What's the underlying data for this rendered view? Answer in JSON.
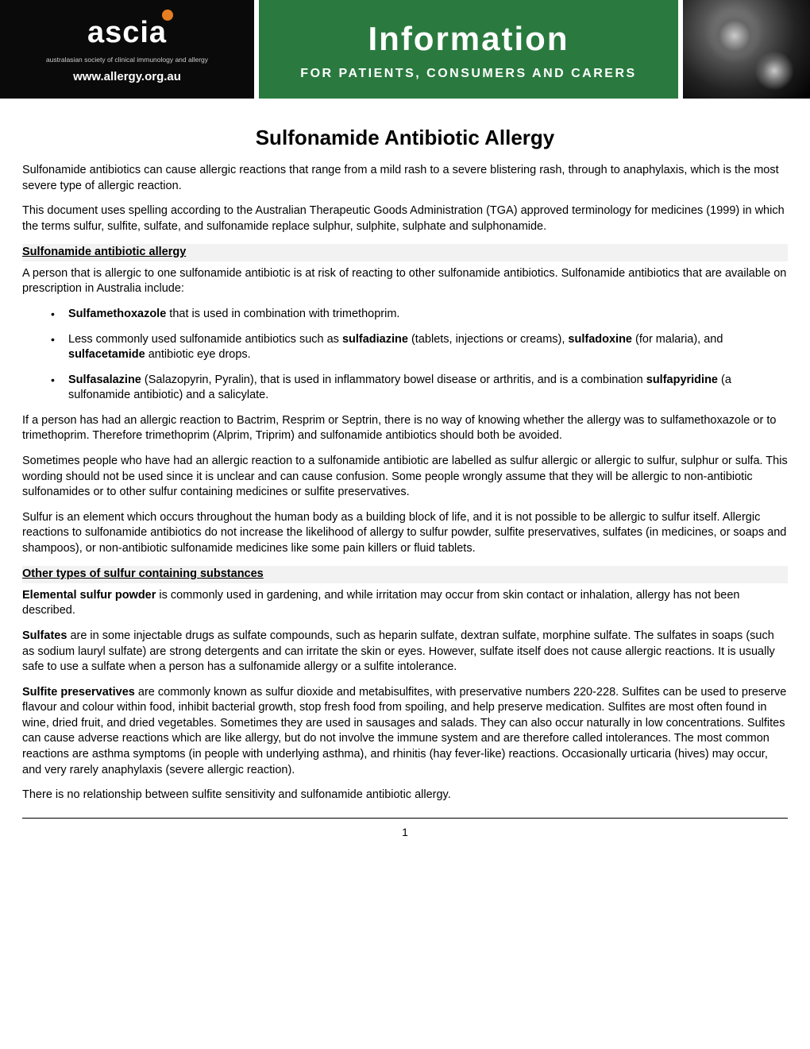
{
  "banner": {
    "logo_text": "ascia",
    "logo_subtitle": "australasian society of clinical immunology and allergy",
    "logo_url": "www.allergy.org.au",
    "info_title": "Information",
    "info_subtitle": "FOR PATIENTS, CONSUMERS AND CARERS",
    "colors": {
      "banner_bg": "#000000",
      "mid_bg": "#2a7a3f",
      "logo_dot": "#e67e22",
      "text_white": "#ffffff"
    }
  },
  "doc": {
    "title": "Sulfonamide Antibiotic Allergy",
    "intro1": "Sulfonamide antibiotics can cause allergic reactions that range from a mild rash to a severe blistering rash, through to anaphylaxis, which is the most severe type of allergic reaction.",
    "intro2": "This document uses spelling according to the Australian Therapeutic Goods Administration (TGA) approved terminology for medicines (1999) in which the terms sulfur, sulfite, sulfate, and sulfonamide replace sulphur, sulphite, sulphate and sulphonamide.",
    "section1_head": "Sulfonamide antibiotic allergy",
    "section1_p1": "A person that is allergic to one sulfonamide antibiotic is at risk of reacting to other sulfonamide antibiotics. Sulfonamide antibiotics that are available on prescription in Australia include:",
    "bullets": {
      "b1_bold": "Sulfamethoxazole",
      "b1_rest": " that is used in combination with trimethoprim.",
      "b2_pre": "Less commonly used sulfonamide antibiotics such as ",
      "b2_bold1": "sulfadiazine",
      "b2_mid1": " (tablets, injections or creams), ",
      "b2_bold2": "sulfadoxine",
      "b2_mid2": " (for malaria), and ",
      "b2_bold3": "sulfacetamide",
      "b2_end": " antibiotic eye drops.",
      "b3_bold1": "Sulfasalazine",
      "b3_mid1": " (Salazopyrin, Pyralin), that is used in inflammatory bowel disease or arthritis, and is a combination ",
      "b3_bold2": "sulfapyridine",
      "b3_end": " (a sulfonamide antibiotic) and a salicylate."
    },
    "section1_p2": "If a person has had an allergic reaction to Bactrim, Resprim or Septrin, there is no way of knowing whether the allergy was to sulfamethoxazole or to trimethoprim. Therefore trimethoprim (Alprim, Triprim) and sulfonamide antibiotics should both be avoided.",
    "section1_p3": "Sometimes people who have had an allergic reaction to a sulfonamide antibiotic are labelled as sulfur allergic or allergic to sulfur, sulphur or sulfa. This wording should not be used since it is unclear and can cause confusion. Some people wrongly assume that they will be allergic to non-antibiotic sulfonamides or to other sulfur containing medicines or sulfite preservatives.",
    "section1_p4": "Sulfur is an element which occurs throughout the human body as a building block of life, and it is not possible to be allergic to sulfur itself. Allergic reactions to sulfonamide antibiotics do not increase the likelihood of allergy to sulfur powder, sulfite preservatives, sulfates (in medicines, or soaps and shampoos), or non-antibiotic sulfonamide medicines like some pain killers or fluid tablets.",
    "section2_head": "Other types of sulfur containing substances",
    "section2_p1_bold": "Elemental sulfur powder",
    "section2_p1_rest": " is commonly used in gardening, and while irritation may occur from skin contact or inhalation, allergy has not been described.",
    "section2_p2_bold": "Sulfates",
    "section2_p2_rest": " are in some injectable drugs as sulfate compounds, such as heparin sulfate, dextran sulfate, morphine sulfate. The sulfates in soaps (such as sodium lauryl sulfate) are strong detergents and can irritate the skin or eyes. However, sulfate itself does not cause allergic reactions. It is usually safe to use a sulfate when a person has a sulfonamide allergy or a sulfite intolerance.",
    "section2_p3_bold": "Sulfite preservatives",
    "section2_p3_rest": " are commonly known as sulfur dioxide and metabisulfites, with preservative numbers 220-228. Sulfites can be used to preserve flavour and colour within food, inhibit bacterial growth, stop fresh food from spoiling, and help preserve medication. Sulfites are most often found in wine, dried fruit, and dried vegetables. Sometimes they are used in sausages and salads. They can also occur naturally in low concentrations. Sulfites can cause adverse reactions which are like allergy, but do not involve the immune system and are therefore called intolerances. The most common reactions are asthma symptoms (in people with underlying asthma), and rhinitis (hay fever-like) reactions. Occasionally urticaria (hives) may occur, and very rarely anaphylaxis (severe allergic reaction).",
    "section2_p4": "There is no relationship between sulfite sensitivity and sulfonamide antibiotic allergy.",
    "page_number": "1"
  }
}
